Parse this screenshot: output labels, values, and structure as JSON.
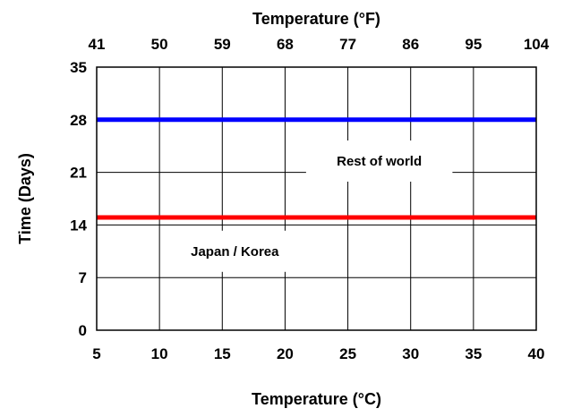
{
  "chart_data": {
    "type": "line",
    "xlabel": "Temperature (°C)",
    "x2label": "Temperature (°F)",
    "ylabel": "Time (Days)",
    "xlim": [
      5,
      40
    ],
    "ylim": [
      0,
      35
    ],
    "x_ticks": [
      5,
      10,
      15,
      20,
      25,
      30,
      35,
      40
    ],
    "x2_ticks": [
      41,
      50,
      59,
      68,
      77,
      86,
      95,
      104
    ],
    "y_ticks": [
      0,
      7,
      14,
      21,
      28,
      35
    ],
    "grid": true,
    "legend": "none",
    "series": [
      {
        "x": [
          5,
          40
        ],
        "y": [
          28,
          28
        ],
        "color": "#0000ff"
      },
      {
        "x": [
          5,
          40
        ],
        "y": [
          15,
          15
        ],
        "color": "#ff0000"
      }
    ],
    "annotations": [
      {
        "text": "Rest of world",
        "x": 27.5,
        "y": 22.5
      },
      {
        "text": "Japan / Korea",
        "x": 16,
        "y": 10.5
      }
    ]
  }
}
